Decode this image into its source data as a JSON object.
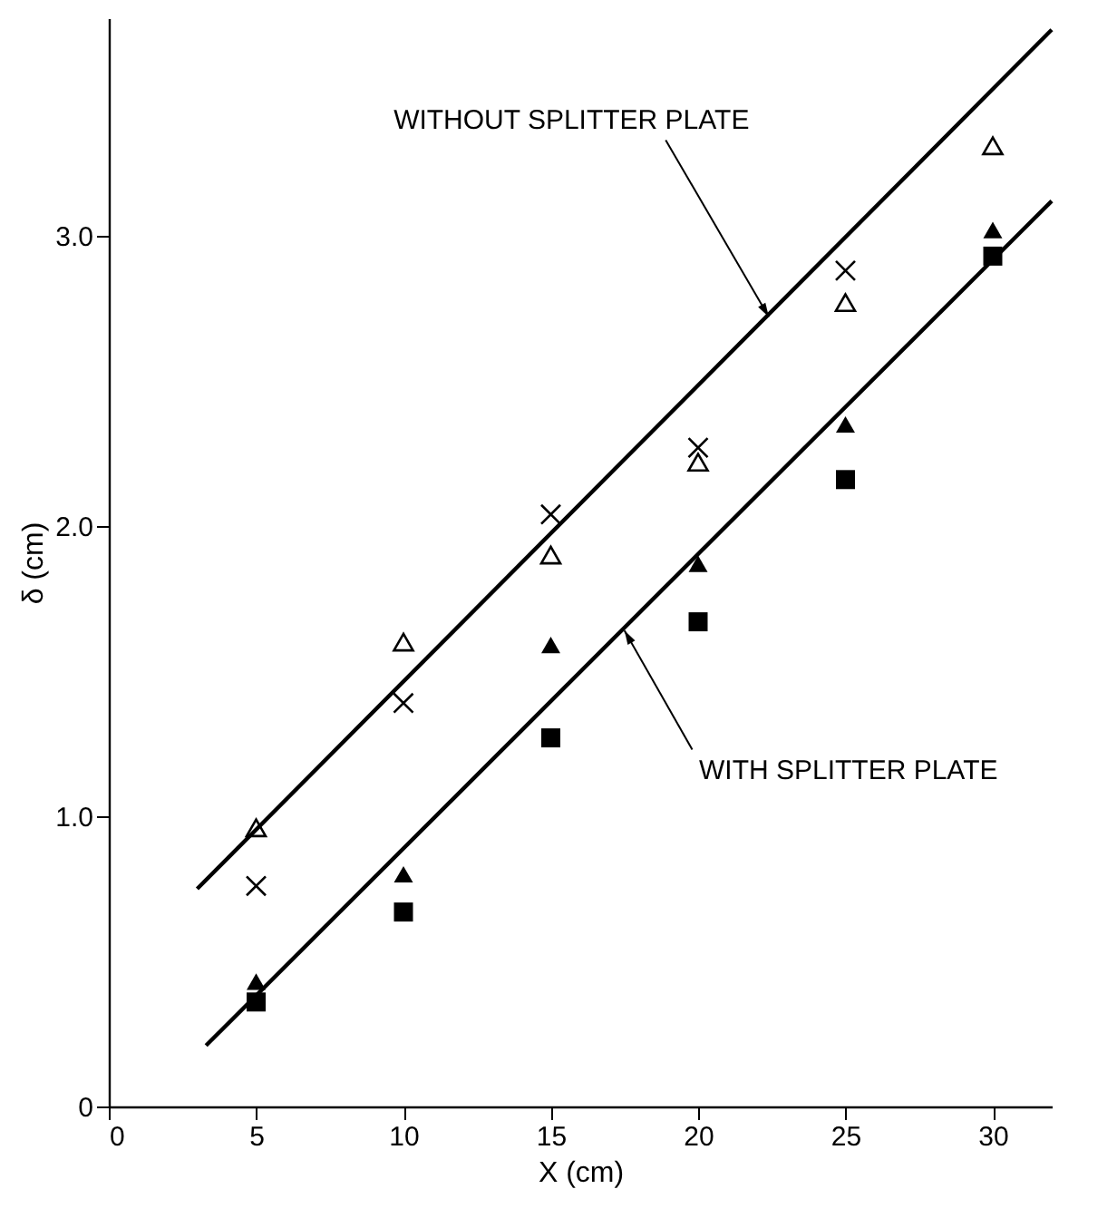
{
  "chart_data": {
    "type": "scatter",
    "xlabel": "X (cm)",
    "ylabel": "δ (cm)",
    "x": [
      5,
      10,
      15,
      20,
      25,
      30
    ],
    "xlim": [
      0,
      32
    ],
    "ylim": [
      0,
      3.75
    ],
    "xticks": [
      0,
      5,
      10,
      15,
      20,
      25,
      30
    ],
    "yticks": [
      0,
      {
        "value": 1,
        "label": "1.0"
      },
      {
        "value": 2,
        "label": "2.0"
      },
      {
        "value": 3,
        "label": "3.0"
      }
    ],
    "grid": false,
    "series": [
      {
        "color": "#000000",
        "marker": "triangle",
        "values": [
          0.96,
          1.6,
          1.9,
          2.22,
          2.77,
          3.31
        ]
      },
      {
        "color": "#000000",
        "marker": "cross",
        "values": [
          0.76,
          1.39,
          2.04,
          2.27,
          2.88,
          null
        ]
      },
      {
        "color": "#000000",
        "marker": "triangle",
        "values": [
          0.43,
          0.8,
          1.59,
          1.87,
          2.35,
          3.02
        ]
      },
      {
        "color": "#000000",
        "marker": "square",
        "values": [
          0.36,
          0.67,
          1.27,
          1.67,
          2.16,
          2.93
        ]
      },
      {
        "type": "line",
        "color": "#000000",
        "marker": "none",
        "line_style": "solid",
        "x": [
          3,
          32
        ],
        "values": [
          0.75,
          3.71
        ]
      },
      {
        "type": "line",
        "color": "#000000",
        "marker": "none",
        "line_style": "solid",
        "x": [
          3.3,
          32
        ],
        "values": [
          0.21,
          3.12
        ]
      }
    ],
    "annotations": [
      {
        "text": "WITHOUT SPLITTER PLATE",
        "x": 22.4,
        "y": 2.72
      },
      {
        "text": "WITH SPLITTER PLATE",
        "x": 17.5,
        "y": 1.64
      }
    ]
  }
}
